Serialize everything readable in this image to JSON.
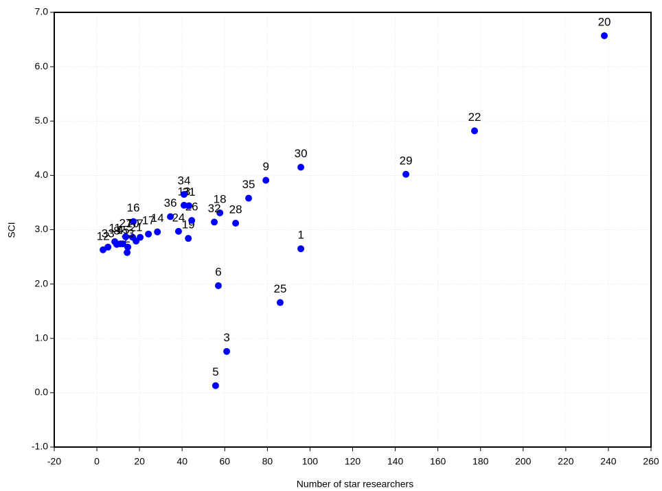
{
  "chart_data": {
    "type": "scatter",
    "x_label": "Number of star researchers",
    "y_label": "SCI",
    "xlim": [
      -20,
      260
    ],
    "ylim": [
      -1.0,
      7.0
    ],
    "xticks": [
      -20,
      0,
      20,
      40,
      60,
      80,
      100,
      120,
      140,
      160,
      180,
      200,
      220,
      240,
      260
    ],
    "yticks": [
      {
        "value": -1,
        "label": "-1.0"
      },
      {
        "value": 0,
        "label": "0.0"
      },
      {
        "value": 1,
        "label": "1.0"
      },
      {
        "value": 2,
        "label": "2.0"
      },
      {
        "value": 3,
        "label": "3.0"
      },
      {
        "value": 4,
        "label": "4.0"
      },
      {
        "value": 5,
        "label": "5.0"
      },
      {
        "value": 6,
        "label": "6.0"
      },
      {
        "value": 7,
        "label": "7.0"
      }
    ],
    "grid": true,
    "color": "#0000ff",
    "labels": [
      "1",
      "2",
      "3",
      "4",
      "5",
      "6",
      "7",
      "8",
      "9",
      "10",
      "11",
      "12",
      "13",
      "14",
      "15",
      "16",
      "17",
      "18",
      "19",
      "20",
      "21",
      "22",
      "23",
      "24",
      "25",
      "26",
      "27",
      "28",
      "29",
      "30",
      "31",
      "32",
      "33",
      "34",
      "35",
      "36"
    ],
    "x": [
      95.7,
      14.2,
      60.9,
      11,
      55.7,
      57,
      20.3,
      9.3,
      79.3,
      16.8,
      8.4,
      2.9,
      40.9,
      28.4,
      12.2,
      17.1,
      24.2,
      57.7,
      42.9,
      238.1,
      18.4,
      177.2,
      14.5,
      38.3,
      86,
      44.5,
      13.5,
      65.1,
      145,
      95.7,
      43.2,
      55.1,
      5.2,
      40.9,
      71.2,
      34.5
    ],
    "y": [
      2.65,
      2.58,
      0.76,
      2.74,
      0.13,
      1.97,
      2.86,
      2.73,
      3.91,
      2.86,
      2.78,
      2.63,
      3.45,
      2.96,
      2.74,
      3.15,
      2.92,
      3.31,
      2.84,
      6.57,
      2.79,
      4.82,
      2.68,
      2.97,
      1.66,
      3.17,
      2.87,
      3.12,
      4.02,
      4.15,
      3.44,
      3.14,
      2.68,
      3.65,
      3.58,
      3.24
    ]
  }
}
